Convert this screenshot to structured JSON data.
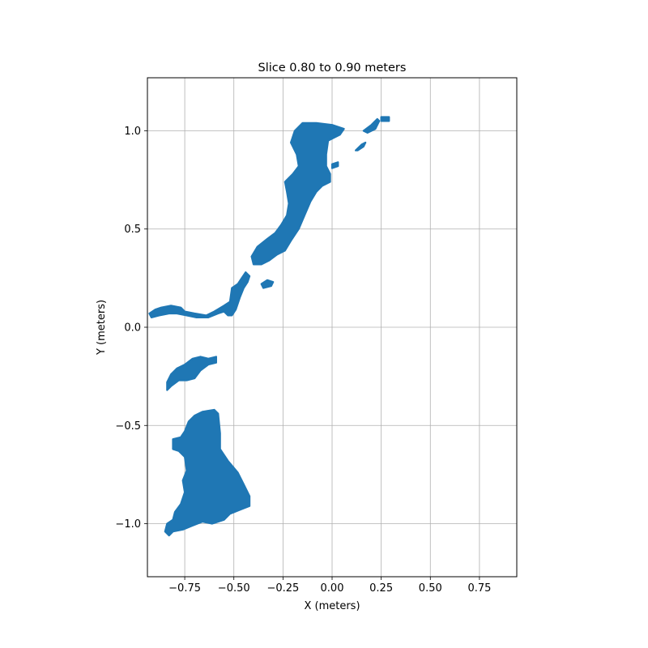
{
  "chart_data": {
    "type": "scatter",
    "title": "Slice 0.80 to 0.90 meters",
    "xlabel": "X (meters)",
    "ylabel": "Y (meters)",
    "xlim": [
      -0.94,
      0.94
    ],
    "ylim": [
      -1.27,
      1.27
    ],
    "xticks": [
      -0.75,
      -0.5,
      -0.25,
      0.0,
      0.25,
      0.5,
      0.75
    ],
    "xtick_labels": [
      "−0.75",
      "−0.50",
      "−0.25",
      "0.00",
      "0.25",
      "0.50",
      "0.75"
    ],
    "yticks": [
      -1.0,
      -0.5,
      0.0,
      0.5,
      1.0
    ],
    "ytick_labels": [
      "−1.0",
      "−0.5",
      "0.0",
      "0.5",
      "1.0"
    ],
    "grid": true,
    "series": [
      {
        "color": "#1f77b4",
        "regions": [
          {
            "part": "large-lower-blob",
            "points": [
              [
                -0.6,
                -0.42
              ],
              [
                -0.58,
                -0.44
              ],
              [
                -0.57,
                -0.54
              ],
              [
                -0.57,
                -0.62
              ],
              [
                -0.53,
                -0.68
              ],
              [
                -0.48,
                -0.74
              ],
              [
                -0.45,
                -0.8
              ],
              [
                -0.42,
                -0.86
              ],
              [
                -0.42,
                -0.91
              ],
              [
                -0.47,
                -0.93
              ],
              [
                -0.52,
                -0.95
              ],
              [
                -0.55,
                -0.98
              ],
              [
                -0.61,
                -1.0
              ],
              [
                -0.66,
                -0.99
              ],
              [
                -0.71,
                -1.01
              ],
              [
                -0.76,
                -1.03
              ],
              [
                -0.81,
                -1.04
              ],
              [
                -0.83,
                -1.06
              ],
              [
                -0.85,
                -1.04
              ],
              [
                -0.84,
                -1.0
              ],
              [
                -0.81,
                -0.98
              ],
              [
                -0.8,
                -0.94
              ],
              [
                -0.77,
                -0.9
              ],
              [
                -0.75,
                -0.84
              ],
              [
                -0.76,
                -0.78
              ],
              [
                -0.74,
                -0.73
              ],
              [
                -0.75,
                -0.66
              ],
              [
                -0.78,
                -0.63
              ],
              [
                -0.81,
                -0.62
              ],
              [
                -0.81,
                -0.57
              ],
              [
                -0.77,
                -0.56
              ],
              [
                -0.75,
                -0.53
              ],
              [
                -0.73,
                -0.48
              ],
              [
                -0.7,
                -0.45
              ],
              [
                -0.66,
                -0.43
              ]
            ]
          },
          {
            "part": "middle-small-blob",
            "points": [
              [
                -0.78,
                -0.27
              ],
              [
                -0.82,
                -0.3
              ],
              [
                -0.84,
                -0.32
              ],
              [
                -0.84,
                -0.28
              ],
              [
                -0.82,
                -0.24
              ],
              [
                -0.79,
                -0.21
              ],
              [
                -0.75,
                -0.19
              ],
              [
                -0.71,
                -0.16
              ],
              [
                -0.67,
                -0.15
              ],
              [
                -0.63,
                -0.16
              ],
              [
                -0.59,
                -0.15
              ],
              [
                -0.59,
                -0.18
              ],
              [
                -0.63,
                -0.19
              ],
              [
                -0.67,
                -0.22
              ],
              [
                -0.7,
                -0.26
              ],
              [
                -0.74,
                -0.27
              ]
            ]
          },
          {
            "part": "left-arm",
            "points": [
              [
                -0.93,
                0.07
              ],
              [
                -0.9,
                0.09
              ],
              [
                -0.87,
                0.1
              ],
              [
                -0.82,
                0.11
              ],
              [
                -0.77,
                0.1
              ],
              [
                -0.75,
                0.08
              ],
              [
                -0.7,
                0.07
              ],
              [
                -0.64,
                0.06
              ],
              [
                -0.6,
                0.08
              ],
              [
                -0.55,
                0.11
              ],
              [
                -0.52,
                0.13
              ],
              [
                -0.51,
                0.2
              ],
              [
                -0.48,
                0.22
              ],
              [
                -0.46,
                0.25
              ],
              [
                -0.44,
                0.28
              ],
              [
                -0.42,
                0.26
              ],
              [
                -0.43,
                0.23
              ],
              [
                -0.45,
                0.2
              ],
              [
                -0.47,
                0.15
              ],
              [
                -0.49,
                0.09
              ],
              [
                -0.51,
                0.06
              ],
              [
                -0.53,
                0.06
              ],
              [
                -0.55,
                0.08
              ],
              [
                -0.58,
                0.07
              ],
              [
                -0.63,
                0.05
              ],
              [
                -0.69,
                0.05
              ],
              [
                -0.74,
                0.06
              ],
              [
                -0.79,
                0.07
              ],
              [
                -0.83,
                0.07
              ],
              [
                -0.88,
                0.06
              ],
              [
                -0.92,
                0.05
              ]
            ]
          },
          {
            "part": "diagonal-band",
            "points": [
              [
                -0.41,
                0.36
              ],
              [
                -0.38,
                0.41
              ],
              [
                -0.33,
                0.45
              ],
              [
                -0.29,
                0.48
              ],
              [
                -0.26,
                0.52
              ],
              [
                -0.23,
                0.57
              ],
              [
                -0.22,
                0.63
              ],
              [
                -0.23,
                0.69
              ],
              [
                -0.24,
                0.74
              ],
              [
                -0.2,
                0.78
              ],
              [
                -0.17,
                0.82
              ],
              [
                -0.18,
                0.88
              ],
              [
                -0.21,
                0.94
              ],
              [
                -0.19,
                1.0
              ],
              [
                -0.15,
                1.04
              ],
              [
                -0.08,
                1.04
              ],
              [
                0.0,
                1.03
              ],
              [
                0.06,
                1.01
              ],
              [
                0.04,
                0.98
              ],
              [
                -0.02,
                0.95
              ],
              [
                -0.03,
                0.88
              ],
              [
                -0.03,
                0.82
              ],
              [
                -0.01,
                0.78
              ],
              [
                -0.01,
                0.74
              ],
              [
                -0.05,
                0.72
              ],
              [
                -0.08,
                0.69
              ],
              [
                -0.11,
                0.64
              ],
              [
                -0.14,
                0.57
              ],
              [
                -0.17,
                0.5
              ],
              [
                -0.21,
                0.44
              ],
              [
                -0.24,
                0.39
              ],
              [
                -0.28,
                0.37
              ],
              [
                -0.32,
                0.34
              ],
              [
                -0.36,
                0.32
              ],
              [
                -0.4,
                0.32
              ]
            ]
          },
          {
            "part": "mid-piece",
            "points": [
              [
                -0.36,
                0.22
              ],
              [
                -0.33,
                0.24
              ],
              [
                -0.3,
                0.23
              ],
              [
                -0.31,
                0.21
              ],
              [
                -0.35,
                0.2
              ]
            ]
          },
          {
            "part": "right-piece-1",
            "points": [
              [
                0.12,
                0.9
              ],
              [
                0.15,
                0.93
              ],
              [
                0.17,
                0.94
              ],
              [
                0.16,
                0.92
              ],
              [
                0.13,
                0.9
              ]
            ]
          },
          {
            "part": "right-piece-2",
            "points": [
              [
                0.16,
                1.0
              ],
              [
                0.2,
                1.03
              ],
              [
                0.23,
                1.06
              ],
              [
                0.24,
                1.05
              ],
              [
                0.22,
                1.01
              ],
              [
                0.18,
                0.99
              ]
            ]
          },
          {
            "part": "right-piece-3",
            "points": [
              [
                0.25,
                1.07
              ],
              [
                0.29,
                1.07
              ],
              [
                0.29,
                1.05
              ],
              [
                0.25,
                1.05
              ]
            ]
          },
          {
            "part": "small-fleck",
            "points": [
              [
                0.0,
                0.83
              ],
              [
                0.03,
                0.84
              ],
              [
                0.03,
                0.82
              ],
              [
                0.0,
                0.81
              ]
            ]
          }
        ]
      }
    ]
  }
}
